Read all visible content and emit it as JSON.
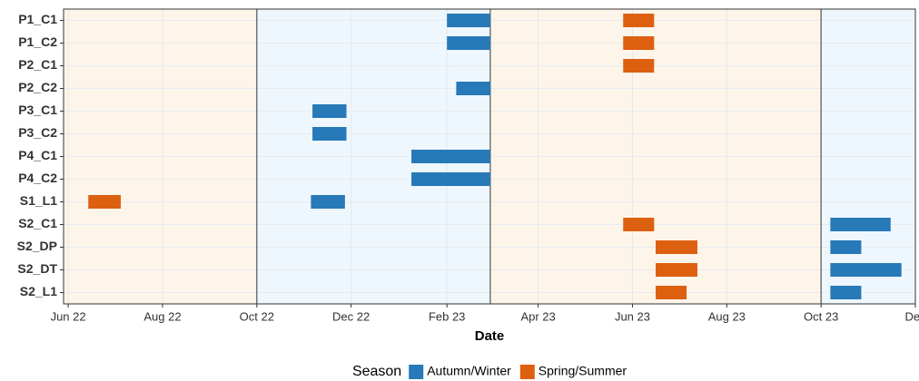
{
  "chart_data": {
    "type": "gantt",
    "categories": [
      "P1_C1",
      "P1_C2",
      "P2_C1",
      "P2_C2",
      "P3_C1",
      "P3_C2",
      "P4_C1",
      "P4_C2",
      "S1_L1",
      "S2_C1",
      "S2_DP",
      "S2_DT",
      "S2_L1"
    ],
    "series": [
      {
        "name": "Autumn/Winter",
        "color": "#2779b8",
        "values": [
          [
            "2023-02-01",
            "2023-03-01"
          ],
          [
            "2023-02-01",
            "2023-03-01"
          ],
          null,
          [
            "2023-02-07",
            "2023-03-01"
          ],
          [
            "2022-11-06",
            "2022-11-28"
          ],
          [
            "2022-11-06",
            "2022-11-28"
          ],
          [
            "2023-01-09",
            "2023-03-01"
          ],
          [
            "2023-01-09",
            "2023-03-01"
          ],
          [
            "2022-11-05",
            "2022-11-27"
          ],
          [
            "2023-10-07",
            "2023-11-15"
          ],
          [
            "2023-10-07",
            "2023-10-27"
          ],
          [
            "2023-10-07",
            "2023-11-22"
          ],
          [
            "2023-10-07",
            "2023-10-27"
          ]
        ]
      },
      {
        "name": "Spring/Summer",
        "color": "#dd6010",
        "values": [
          [
            "2023-05-26",
            "2023-06-15"
          ],
          [
            "2023-05-26",
            "2023-06-15"
          ],
          [
            "2023-05-26",
            "2023-06-15"
          ],
          null,
          null,
          null,
          null,
          null,
          [
            "2022-06-14",
            "2022-07-05"
          ],
          [
            "2023-05-26",
            "2023-06-15"
          ],
          [
            "2023-06-16",
            "2023-07-13"
          ],
          [
            "2023-06-16",
            "2023-07-13"
          ],
          [
            "2023-06-16",
            "2023-07-06"
          ]
        ]
      }
    ],
    "bands": [
      {
        "start": "2022-05-29",
        "end": "2022-10-01",
        "color": "#fdf4ea"
      },
      {
        "start": "2022-10-01",
        "end": "2023-03-01",
        "color": "#eef7fd"
      },
      {
        "start": "2023-03-01",
        "end": "2023-10-01",
        "color": "#fdf4ea"
      },
      {
        "start": "2023-10-01",
        "end": "2023-12-01",
        "color": "#eef7fd"
      }
    ],
    "xlim": [
      "2022-05-29",
      "2023-12-01"
    ],
    "xticks": [
      {
        "value": "2022-06-01",
        "label": "Jun 22"
      },
      {
        "value": "2022-08-01",
        "label": "Aug 22"
      },
      {
        "value": "2022-10-01",
        "label": "Oct 22"
      },
      {
        "value": "2022-12-01",
        "label": "Dec 22"
      },
      {
        "value": "2023-02-01",
        "label": "Feb 23"
      },
      {
        "value": "2023-04-01",
        "label": "Apr 23"
      },
      {
        "value": "2023-06-01",
        "label": "Jun 23"
      },
      {
        "value": "2023-08-01",
        "label": "Aug 23"
      },
      {
        "value": "2023-10-01",
        "label": "Oct 23"
      },
      {
        "value": "2023-12-01",
        "label": "Dec"
      }
    ],
    "x_label": "Date",
    "legend_title": "Season",
    "grid": true,
    "legend": "bottom"
  }
}
